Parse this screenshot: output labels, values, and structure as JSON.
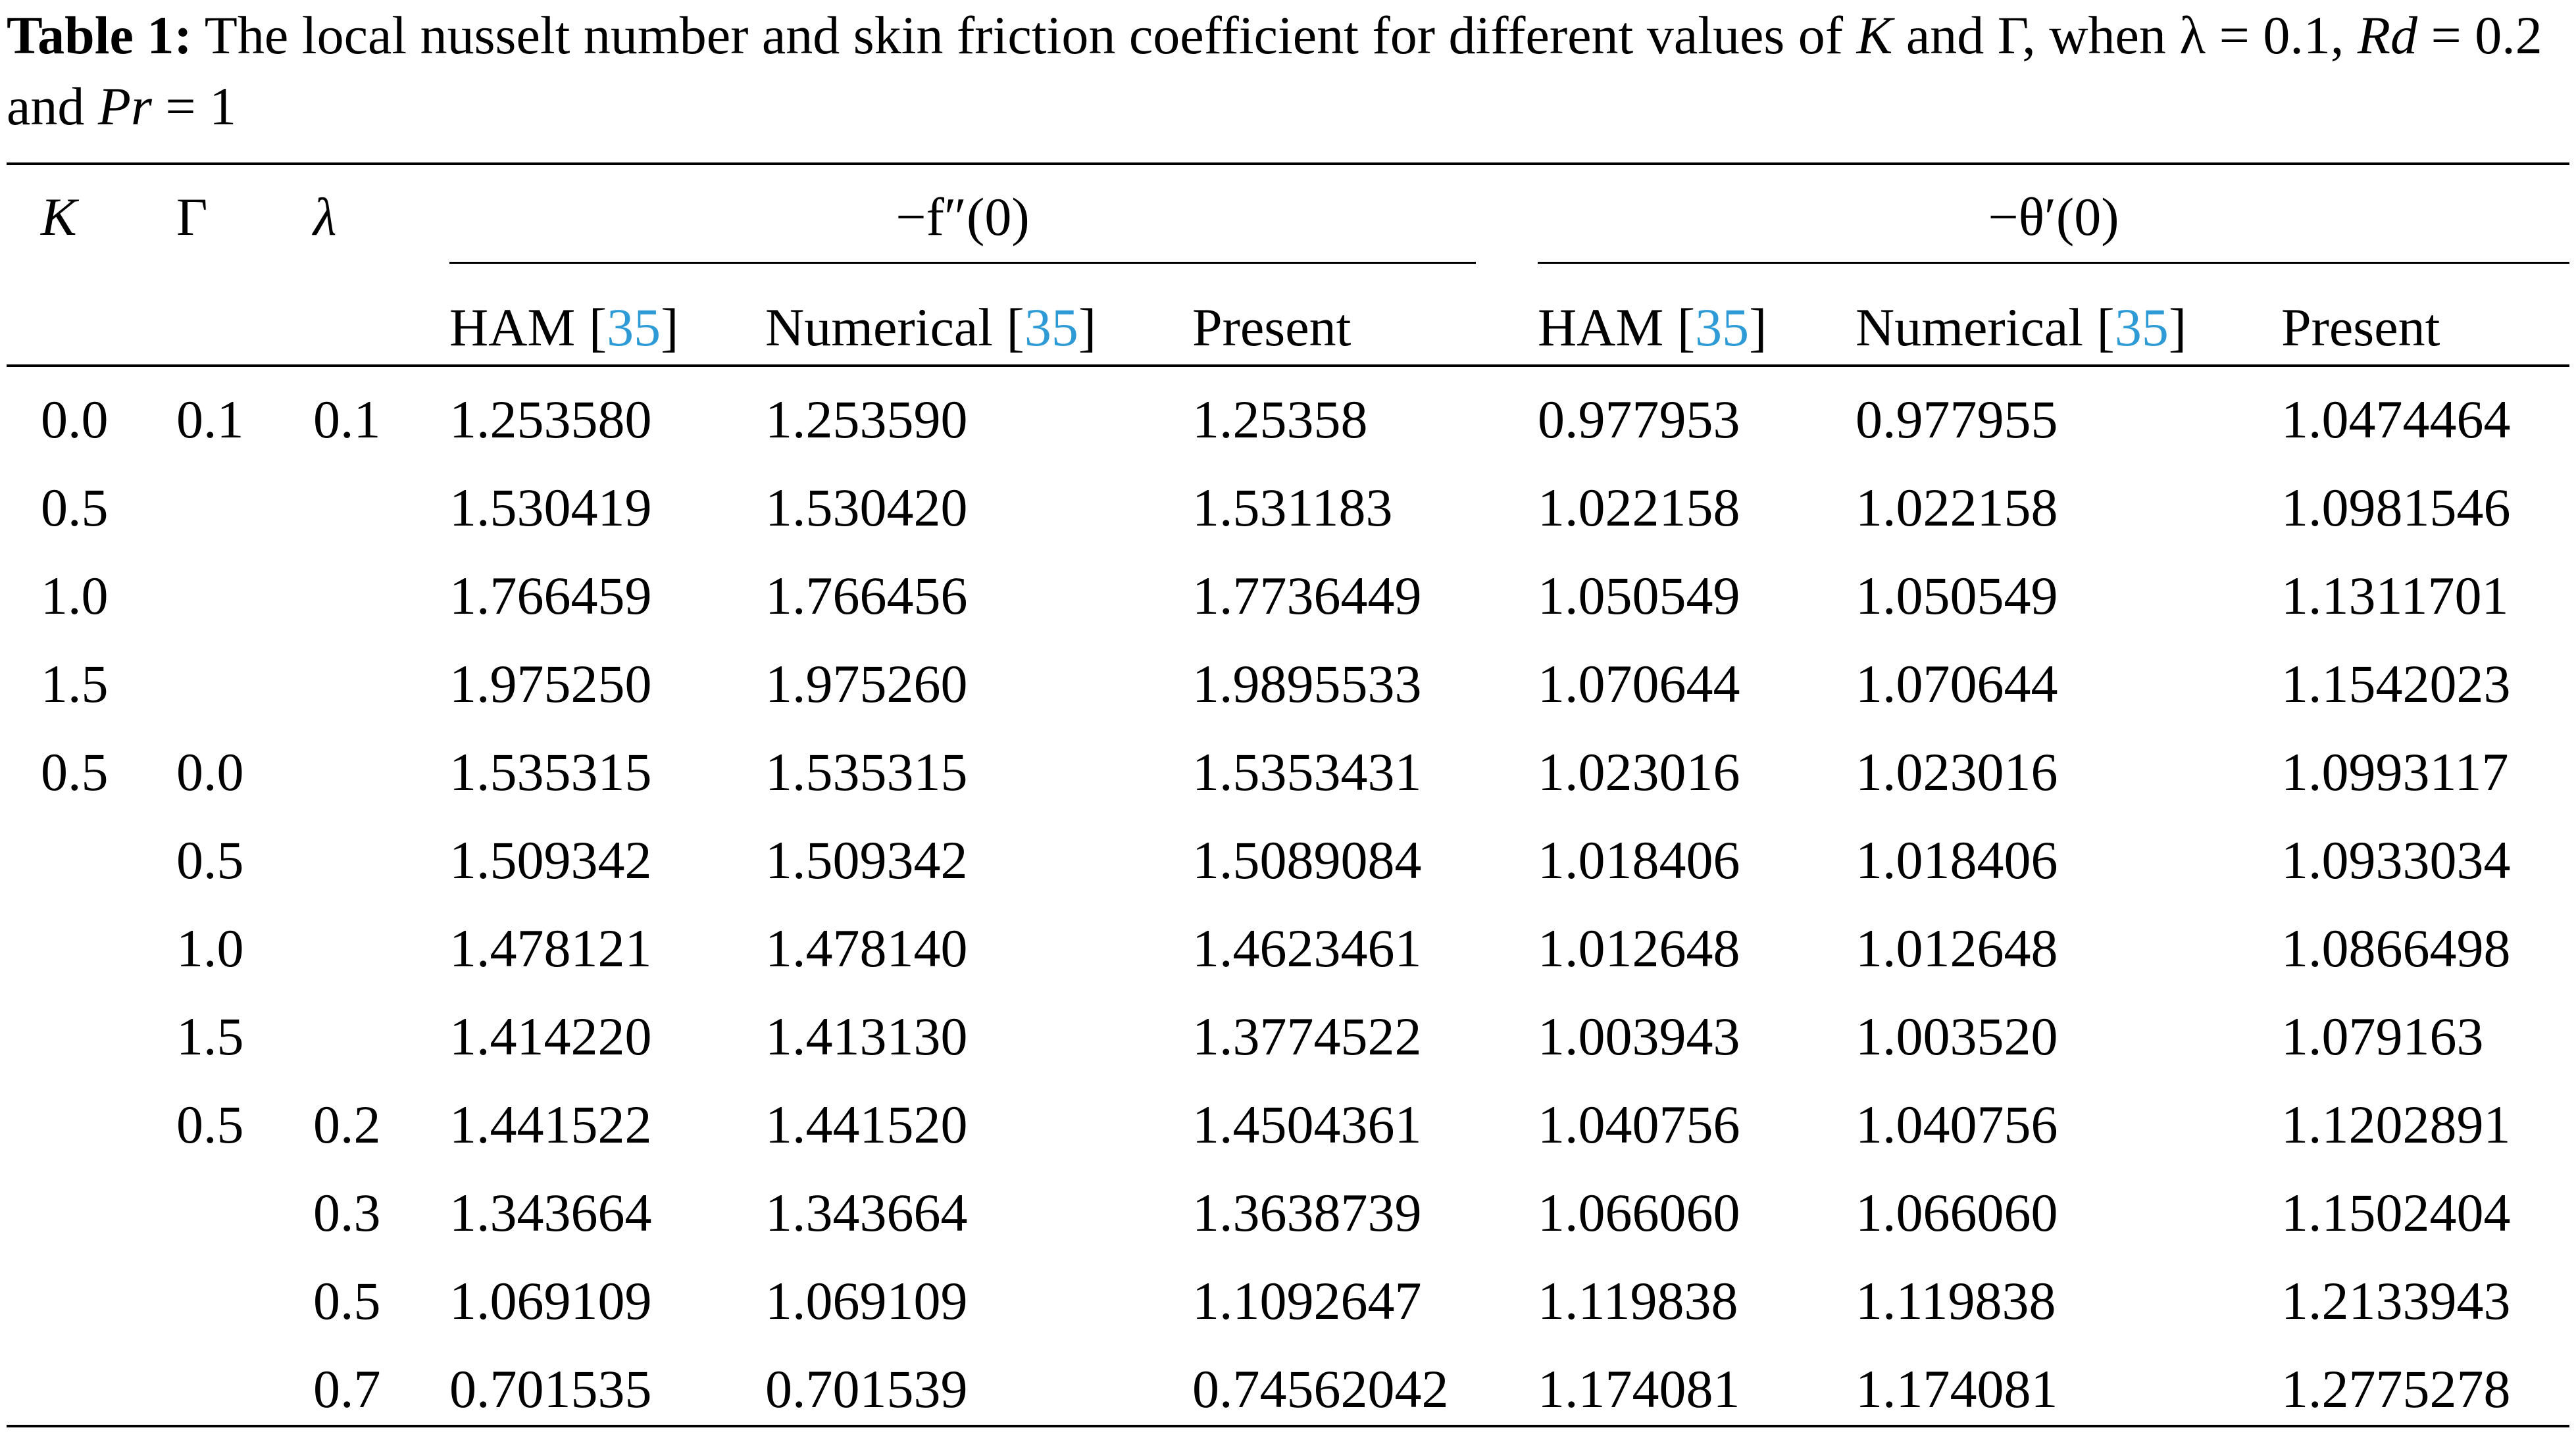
{
  "caption": {
    "label": "Table 1:",
    "text_line1": "The local nusselt number and skin friction coefficient for different values of",
    "k_sym": "K",
    "and1": "and",
    "gamma_sym": "Γ",
    "when": ", when",
    "lambda_eq": "λ = 0.1,",
    "rd_sym": "Rd",
    "rd_eq": "= 0.2 and",
    "pr_sym": "Pr",
    "pr_eq": "= 1"
  },
  "headers": {
    "k": "K",
    "gamma": "Γ",
    "lambda": "λ",
    "fpp_group": "−f″(0)",
    "theta_group": "−θ′(0)",
    "ham": "HAM [",
    "numerical": "Numerical [",
    "ref": "35",
    "close": "]",
    "present": "Present"
  },
  "rows": [
    {
      "k": "0.0",
      "gamma": "0.1",
      "lambda": "0.1",
      "f_ham": "1.253580",
      "f_num": "1.253590",
      "f_pres": "1.25358",
      "t_ham": "0.977953",
      "t_num": "0.977955",
      "t_pres": "1.0474464"
    },
    {
      "k": "0.5",
      "gamma": "",
      "lambda": "",
      "f_ham": "1.530419",
      "f_num": "1.530420",
      "f_pres": "1.531183",
      "t_ham": "1.022158",
      "t_num": "1.022158",
      "t_pres": "1.0981546"
    },
    {
      "k": "1.0",
      "gamma": "",
      "lambda": "",
      "f_ham": "1.766459",
      "f_num": "1.766456",
      "f_pres": "1.7736449",
      "t_ham": "1.050549",
      "t_num": "1.050549",
      "t_pres": "1.1311701"
    },
    {
      "k": "1.5",
      "gamma": "",
      "lambda": "",
      "f_ham": "1.975250",
      "f_num": "1.975260",
      "f_pres": "1.9895533",
      "t_ham": "1.070644",
      "t_num": "1.070644",
      "t_pres": "1.1542023"
    },
    {
      "k": "0.5",
      "gamma": "0.0",
      "lambda": "",
      "f_ham": "1.535315",
      "f_num": "1.535315",
      "f_pres": "1.5353431",
      "t_ham": "1.023016",
      "t_num": "1.023016",
      "t_pres": "1.0993117"
    },
    {
      "k": "",
      "gamma": "0.5",
      "lambda": "",
      "f_ham": "1.509342",
      "f_num": "1.509342",
      "f_pres": "1.5089084",
      "t_ham": "1.018406",
      "t_num": "1.018406",
      "t_pres": "1.0933034"
    },
    {
      "k": "",
      "gamma": "1.0",
      "lambda": "",
      "f_ham": "1.478121",
      "f_num": "1.478140",
      "f_pres": "1.4623461",
      "t_ham": "1.012648",
      "t_num": "1.012648",
      "t_pres": "1.0866498"
    },
    {
      "k": "",
      "gamma": "1.5",
      "lambda": "",
      "f_ham": "1.414220",
      "f_num": "1.413130",
      "f_pres": "1.3774522",
      "t_ham": "1.003943",
      "t_num": "1.003520",
      "t_pres": "1.079163"
    },
    {
      "k": "",
      "gamma": "0.5",
      "lambda": "0.2",
      "f_ham": "1.441522",
      "f_num": "1.441520",
      "f_pres": "1.4504361",
      "t_ham": "1.040756",
      "t_num": "1.040756",
      "t_pres": "1.1202891"
    },
    {
      "k": "",
      "gamma": "",
      "lambda": "0.3",
      "f_ham": "1.343664",
      "f_num": "1.343664",
      "f_pres": "1.3638739",
      "t_ham": "1.066060",
      "t_num": "1.066060",
      "t_pres": "1.1502404"
    },
    {
      "k": "",
      "gamma": "",
      "lambda": "0.5",
      "f_ham": "1.069109",
      "f_num": "1.069109",
      "f_pres": "1.1092647",
      "t_ham": "1.119838",
      "t_num": "1.119838",
      "t_pres": "1.2133943"
    },
    {
      "k": "",
      "gamma": "",
      "lambda": "0.7",
      "f_ham": "0.701535",
      "f_num": "0.701539",
      "f_pres": "0.74562042",
      "t_ham": "1.174081",
      "t_num": "1.174081",
      "t_pres": "1.2775278"
    }
  ]
}
